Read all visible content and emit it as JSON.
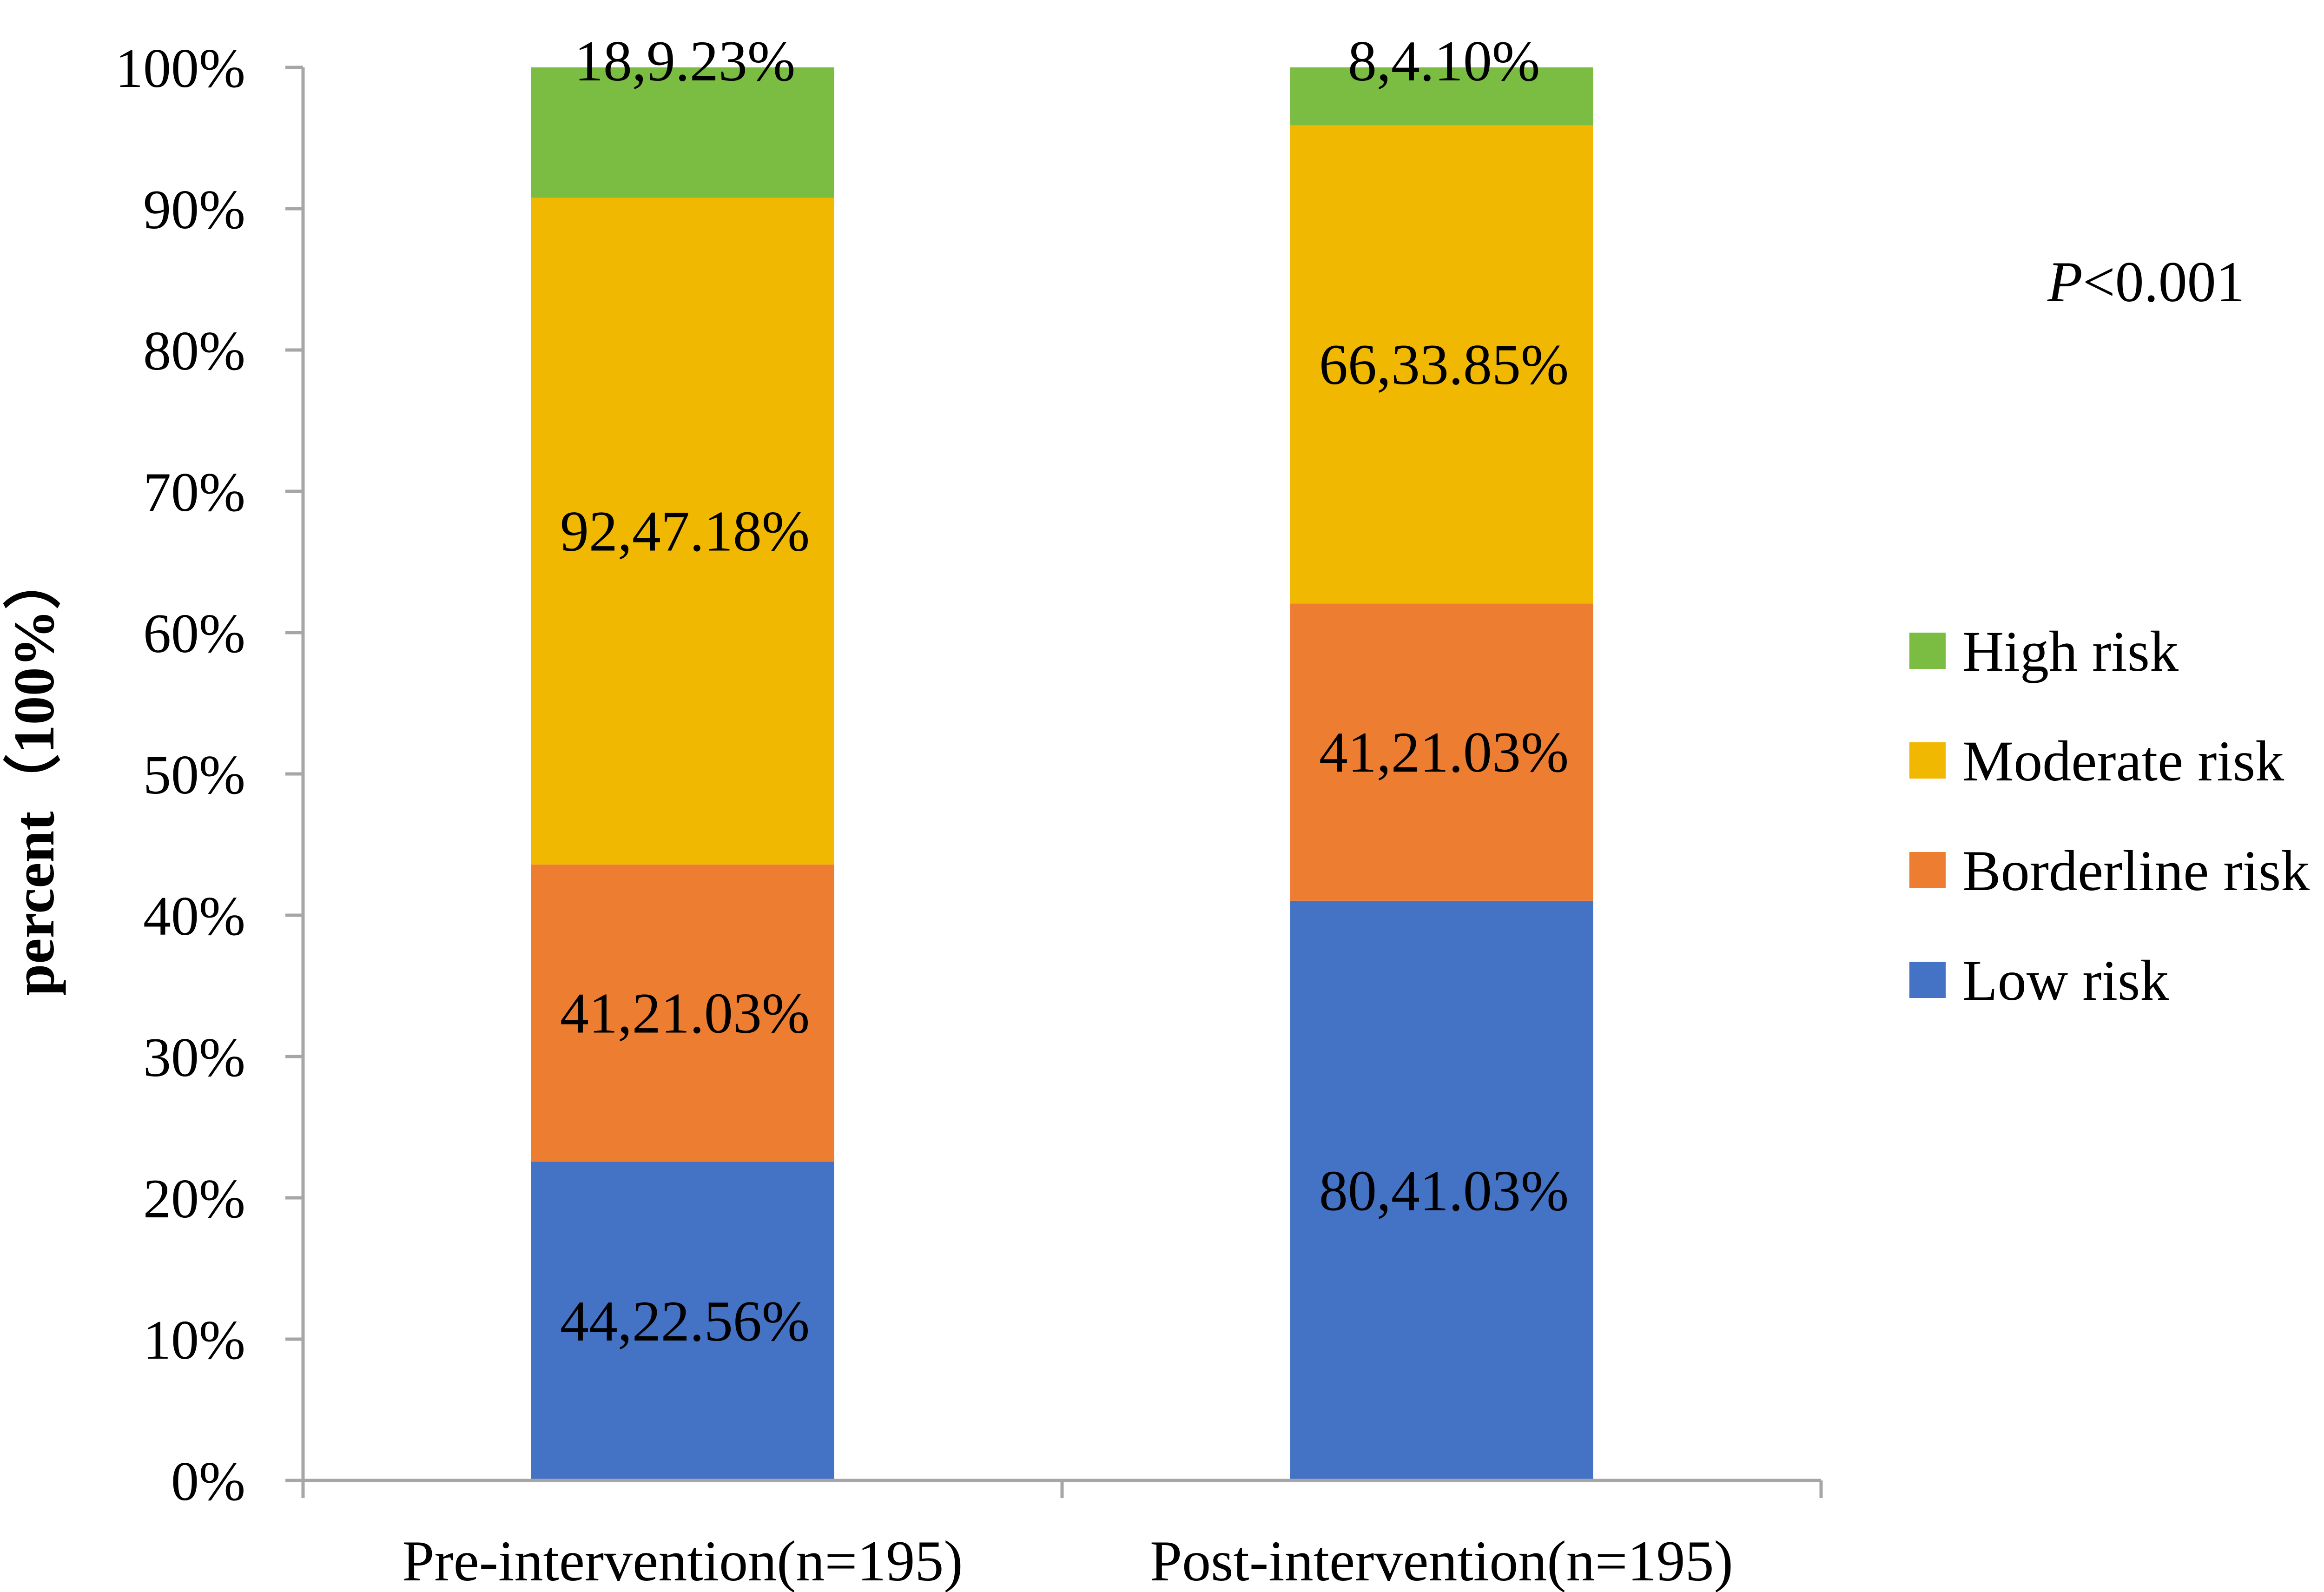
{
  "chart_data": {
    "type": "bar",
    "stacked": true,
    "percent_stacked": true,
    "categories": [
      "Pre-intervention(n=195)",
      "Post-intervention(n=195)"
    ],
    "series": [
      {
        "name": "Low risk",
        "color": "#4472c4",
        "values": [
          22.56,
          41.03
        ],
        "labels": [
          "44,22.56%",
          "80,41.03%"
        ]
      },
      {
        "name": "Borderline risk",
        "color": "#ed7d31",
        "values": [
          21.03,
          21.03
        ],
        "labels": [
          "41,21.03%",
          "41,21.03%"
        ]
      },
      {
        "name": "Moderate risk",
        "color": "#f0b800",
        "values": [
          47.18,
          33.85
        ],
        "labels": [
          "92,47.18%",
          "66,33.85%"
        ]
      },
      {
        "name": "High risk",
        "color": "#7abd42",
        "values": [
          9.23,
          4.1
        ],
        "labels": [
          "18,9.23%",
          "8,4.10%"
        ]
      }
    ],
    "ylabel": "percent（100%）",
    "xlabel": "",
    "ylim": [
      0,
      100
    ],
    "yticks": [
      "0%",
      "10%",
      "20%",
      "30%",
      "40%",
      "50%",
      "60%",
      "70%",
      "80%",
      "90%",
      "100%"
    ],
    "legend_position": "right",
    "legend_order": [
      "High risk",
      "Moderate risk",
      "Borderline risk",
      "Low risk"
    ],
    "annotation": {
      "italic": "P",
      "text": "<0.001"
    },
    "grid": false
  }
}
